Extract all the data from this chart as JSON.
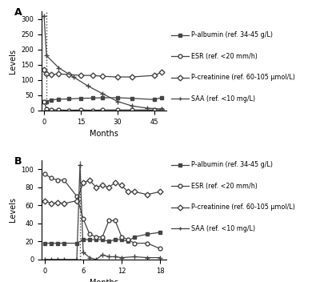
{
  "panel_A": {
    "dotted_line_x": 1,
    "P_albumin": {
      "x": [
        0,
        1,
        3,
        6,
        10,
        15,
        20,
        24,
        30,
        36,
        45,
        48
      ],
      "y": [
        28,
        30,
        35,
        37,
        38,
        40,
        41,
        42,
        42,
        40,
        36,
        42
      ]
    },
    "ESR": {
      "x": [
        0,
        1,
        3,
        6,
        10,
        15,
        20,
        24,
        30,
        36,
        45,
        48
      ],
      "y": [
        30,
        5,
        3,
        2,
        1,
        2,
        1,
        2,
        2,
        2,
        2,
        3
      ]
    },
    "P_creatinine": {
      "x": [
        0,
        1,
        3,
        6,
        10,
        15,
        20,
        24,
        30,
        36,
        45,
        48
      ],
      "y": [
        135,
        120,
        118,
        120,
        118,
        115,
        115,
        112,
        110,
        110,
        115,
        125
      ]
    },
    "SAA": {
      "x": [
        0,
        1,
        6,
        12,
        18,
        24,
        30,
        36,
        42,
        48
      ],
      "y": [
        310,
        180,
        140,
        110,
        80,
        55,
        30,
        15,
        8,
        5
      ]
    },
    "ylim": [
      0,
      325
    ],
    "yticks": [
      0,
      50,
      100,
      150,
      200,
      250,
      300
    ],
    "xticks": [
      0,
      15,
      30,
      45
    ],
    "xlabel": "Months",
    "ylabel": "Levels"
  },
  "panel_B": {
    "dotted_line_x": 5.5,
    "P_albumin": {
      "x": [
        0,
        1,
        2,
        3,
        5,
        6,
        7,
        8,
        9,
        10,
        11,
        12,
        13,
        14,
        16,
        18
      ],
      "y": [
        18,
        18,
        18,
        18,
        18,
        22,
        22,
        22,
        22,
        20,
        22,
        22,
        20,
        25,
        28,
        30
      ]
    },
    "ESR": {
      "x": [
        0,
        1,
        2,
        3,
        5,
        6,
        7,
        8,
        9,
        10,
        11,
        12,
        13,
        14,
        16,
        18
      ],
      "y": [
        95,
        90,
        88,
        88,
        70,
        45,
        28,
        25,
        25,
        43,
        43,
        25,
        22,
        18,
        18,
        12
      ]
    },
    "P_creatinine": {
      "x": [
        0,
        1,
        2,
        3,
        5,
        6,
        7,
        8,
        9,
        10,
        11,
        12,
        13,
        14,
        16,
        18
      ],
      "y": [
        65,
        62,
        63,
        62,
        65,
        85,
        88,
        80,
        82,
        80,
        85,
        82,
        75,
        75,
        72,
        75
      ]
    },
    "SAA": {
      "x": [
        0,
        1,
        2,
        3,
        5,
        5.5,
        6,
        7,
        8,
        9,
        10,
        11,
        12,
        14,
        16,
        18
      ],
      "y": [
        0,
        0,
        0,
        0,
        0,
        105,
        8,
        2,
        0,
        5,
        3,
        3,
        2,
        3,
        2,
        2
      ]
    },
    "ylim": [
      0,
      110
    ],
    "yticks": [
      0,
      20,
      40,
      60,
      80,
      100
    ],
    "xticks": [
      0,
      6,
      12,
      18
    ],
    "xlabel": "Months",
    "ylabel": "Levels"
  },
  "legend_labels": [
    "P-albumin (ref. 34-45 g/L)",
    "ESR (ref. <20 mm/h)",
    "P-creatinine (ref. 60-105 μmol/L)",
    "SAA (ref. <10 mg/L)"
  ],
  "line_color": "#444444",
  "bg_color": "#ffffff"
}
